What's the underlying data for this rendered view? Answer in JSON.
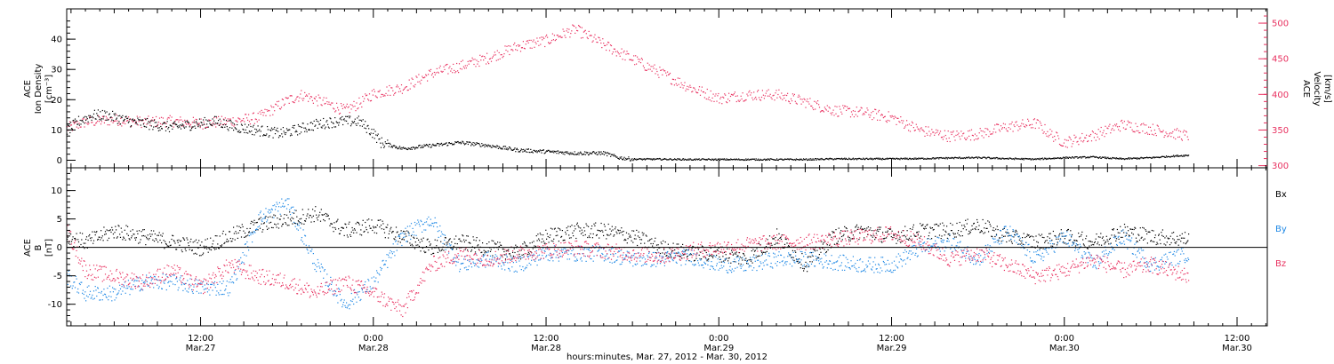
{
  "colors": {
    "black": "#000000",
    "red": "#e8305f",
    "blue": "#1e88e5",
    "axis": "#000000",
    "velocity_axis": "#e8305f"
  },
  "x_axis": {
    "caption": "hours:minutes, Mar. 27, 2012 - Mar. 30, 2012",
    "ticks": [
      {
        "hour": 12,
        "time": "12:00",
        "date": "Mar.27"
      },
      {
        "hour": 24,
        "time": "0:00",
        "date": "Mar.28"
      },
      {
        "hour": 36,
        "time": "12:00",
        "date": "Mar.28"
      },
      {
        "hour": 48,
        "time": "0:00",
        "date": "Mar.29"
      },
      {
        "hour": 60,
        "time": "12:00",
        "date": "Mar.29"
      },
      {
        "hour": 72,
        "time": "0:00",
        "date": "Mar.30"
      },
      {
        "hour": 84,
        "time": "12:00",
        "date": "Mar.30"
      }
    ],
    "range_hours": [
      2.7,
      86.1
    ],
    "hour_zero": "2012-03-27 00:00"
  },
  "chart_data": [
    {
      "type": "scatter",
      "panel": "plasma",
      "ylabel_left": [
        "ACE",
        "Ion Density",
        "[cm⁻³]"
      ],
      "ylabel_right": [
        "ACE",
        "Velocity",
        "[km/s]"
      ],
      "ylim_left": [
        -2.5,
        50
      ],
      "yticks_left": [
        0,
        10,
        20,
        30,
        40
      ],
      "ylim_right": [
        297,
        520
      ],
      "yticks_right": [
        300,
        350,
        400,
        450,
        500
      ],
      "series": [
        {
          "key": "density",
          "axis": "left",
          "color": "#000000",
          "x": [
            2.7,
            3.5,
            4.5,
            5.5,
            7,
            8.5,
            10,
            11.5,
            13,
            14.5,
            16,
            17.5,
            18.5,
            20,
            21.5,
            23,
            24,
            24.5,
            26,
            28,
            30,
            32,
            34,
            36,
            38,
            40,
            41,
            42,
            44,
            46,
            48,
            50,
            52,
            54,
            56,
            58,
            60,
            62,
            64,
            66,
            68,
            70,
            72,
            74,
            76,
            78,
            79.5,
            80.6
          ],
          "y": [
            10,
            13,
            15,
            15,
            13,
            12,
            11,
            12,
            13,
            11,
            10,
            9,
            10,
            12,
            13,
            13,
            9,
            6,
            4,
            5,
            6,
            5,
            3.5,
            3,
            2.5,
            2.5,
            1,
            0.5,
            0.5,
            0.4,
            0.4,
            0.4,
            0.4,
            0.4,
            0.6,
            0.6,
            0.6,
            0.7,
            0.9,
            1,
            0.7,
            0.5,
            1,
            1.2,
            0.6,
            1,
            1.5,
            1.8
          ]
        },
        {
          "key": "velocity",
          "axis": "right",
          "color": "#e8305f",
          "x": [
            2.7,
            4,
            6,
            8,
            10,
            12,
            14,
            16,
            18,
            19,
            20,
            21,
            22,
            23,
            24,
            26,
            28,
            30,
            32,
            34,
            36,
            38,
            40,
            42,
            44,
            46,
            48,
            50,
            52,
            54,
            56,
            58,
            60,
            62,
            64,
            66,
            68,
            70,
            71,
            72,
            74,
            76,
            78,
            80.6
          ],
          "y": [
            353,
            362,
            365,
            362,
            363,
            360,
            363,
            368,
            392,
            400,
            393,
            386,
            378,
            388,
            402,
            410,
            430,
            440,
            452,
            468,
            476,
            492,
            470,
            450,
            430,
            410,
            395,
            400,
            400,
            390,
            378,
            375,
            368,
            350,
            342,
            345,
            355,
            360,
            345,
            333,
            343,
            358,
            352,
            342
          ]
        }
      ]
    },
    {
      "type": "scatter",
      "panel": "magnetic",
      "ylabel_left": [
        "ACE",
        "B",
        "[nT]"
      ],
      "ylim": [
        -13.8,
        14
      ],
      "yticks": [
        -10,
        -5,
        0,
        5,
        10
      ],
      "zero_line": true,
      "legend_position": "right",
      "series": [
        {
          "key": "bx",
          "name": "Bx",
          "color": "#000000",
          "x": [
            2.7,
            4,
            6,
            8,
            10,
            12,
            14,
            16,
            18,
            20,
            22,
            24,
            26,
            28,
            30,
            32,
            34,
            36,
            38,
            40,
            42,
            44,
            46,
            48,
            50,
            52,
            54,
            56,
            58,
            60,
            62,
            64,
            66,
            68,
            70,
            72,
            74,
            76,
            78,
            80.6
          ],
          "y": [
            2,
            1,
            3,
            2,
            1,
            0,
            2,
            4,
            5,
            6,
            3,
            4,
            2,
            0,
            1,
            0,
            -1,
            2,
            3,
            3,
            2,
            0,
            -1,
            -1,
            -2,
            2,
            -3,
            2,
            3,
            2,
            3,
            3,
            4,
            2,
            1,
            2,
            1,
            3,
            2,
            1.5
          ]
        },
        {
          "key": "by",
          "name": "By",
          "color": "#1e88e5",
          "x": [
            2.7,
            4,
            6,
            8,
            10,
            12,
            14,
            16,
            18,
            20,
            22,
            24,
            26,
            28,
            30,
            32,
            34,
            36,
            38,
            40,
            42,
            44,
            46,
            48,
            50,
            52,
            54,
            56,
            58,
            60,
            62,
            64,
            66,
            68,
            70,
            72,
            74,
            76,
            78,
            80.6
          ],
          "y": [
            -5,
            -8,
            -8,
            -6,
            -6,
            -7,
            -7,
            5,
            8,
            -3,
            -10,
            -6,
            2,
            5,
            -3,
            -2,
            -3,
            -1,
            -1,
            -1,
            -2,
            -2,
            -1.5,
            -3,
            -3,
            -2,
            -2,
            -2.5,
            -3,
            -3,
            0,
            1,
            -2,
            3,
            -2,
            2,
            -3,
            2,
            -3,
            -1
          ]
        },
        {
          "key": "bz",
          "name": "Bz",
          "color": "#e8305f",
          "x": [
            2.7,
            4,
            6,
            8,
            10,
            12,
            14,
            16,
            18,
            20,
            22,
            24,
            26,
            28,
            30,
            32,
            34,
            36,
            38,
            40,
            42,
            44,
            46,
            48,
            50,
            52,
            54,
            56,
            58,
            60,
            62,
            64,
            66,
            68,
            70,
            72,
            74,
            76,
            78,
            80.6
          ],
          "y": [
            3,
            -4,
            -5,
            -6,
            -4,
            -7,
            -3,
            -5,
            -6,
            -8,
            -6,
            -8,
            -11,
            -3,
            -1,
            -2,
            -1,
            -0.5,
            0,
            -0.5,
            -1,
            -1.5,
            -0.5,
            0,
            0.5,
            1,
            1,
            1.5,
            2,
            2.5,
            1,
            -2,
            -1,
            -3,
            -5,
            -4,
            -2,
            -4,
            -3,
            -5
          ]
        }
      ]
    }
  ]
}
